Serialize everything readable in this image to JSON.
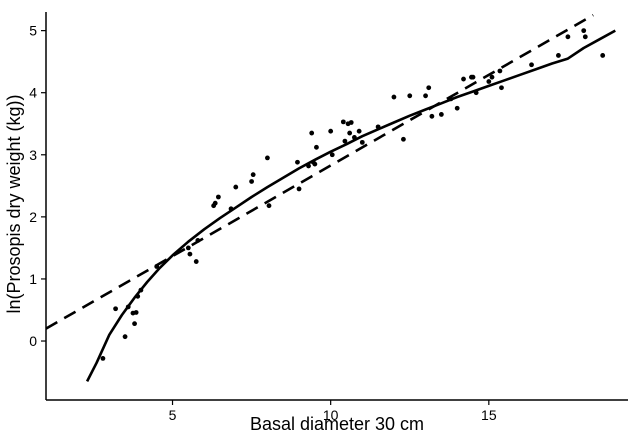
{
  "chart_data": {
    "type": "scatter",
    "xlabel": "Basal diameter 30 cm",
    "ylabel": "ln(Prosopis dry weight (kg))",
    "xlim": [
      1.0,
      19.4
    ],
    "ylim": [
      -0.95,
      5.3
    ],
    "x_ticks": [
      5,
      10,
      15
    ],
    "x_tick_labels": [
      "5",
      "10",
      "15"
    ],
    "y_ticks": [
      0,
      1,
      2,
      3,
      4,
      5
    ],
    "y_tick_labels": [
      "0",
      "1",
      "2",
      "3",
      "4",
      "5"
    ],
    "grid": false,
    "colors": {
      "points": "#000000",
      "lines": "#000000",
      "background": "#ffffff"
    },
    "series": [
      {
        "kind": "points",
        "x": [
          2.8,
          3.2,
          3.5,
          3.6,
          3.75,
          3.8,
          3.85,
          3.9,
          4.0,
          4.5,
          5.5,
          5.55,
          5.75,
          5.8,
          6.3,
          6.35,
          6.45,
          6.85,
          7.0,
          7.5,
          7.55,
          8.0,
          8.05,
          8.95,
          9.0,
          9.3,
          9.4,
          9.45,
          9.5,
          9.55,
          10.0,
          10.05,
          10.4,
          10.45,
          10.55,
          10.6,
          10.65,
          10.75,
          10.9,
          11.0,
          11.5,
          12.0,
          12.3,
          12.5,
          13.0,
          13.1,
          13.2,
          13.5,
          13.8,
          14.0,
          14.2,
          14.45,
          14.5,
          14.6,
          15.0,
          15.1,
          15.35,
          15.4,
          16.35,
          17.2,
          17.5,
          18.0,
          18.05,
          18.6
        ],
        "y": [
          -0.28,
          0.52,
          0.07,
          0.55,
          0.45,
          0.28,
          0.46,
          0.72,
          0.82,
          1.2,
          1.5,
          1.4,
          1.28,
          1.62,
          2.18,
          2.22,
          2.32,
          2.13,
          2.48,
          2.57,
          2.68,
          2.95,
          2.18,
          2.88,
          2.45,
          2.82,
          3.35,
          2.88,
          2.85,
          3.12,
          3.38,
          3.0,
          3.53,
          3.22,
          3.5,
          3.35,
          3.52,
          3.28,
          3.38,
          3.2,
          3.45,
          3.93,
          3.25,
          3.95,
          3.95,
          4.08,
          3.62,
          3.65,
          3.9,
          3.75,
          4.22,
          4.25,
          4.25,
          4.0,
          4.18,
          4.25,
          4.35,
          4.08,
          4.45,
          4.6,
          4.9,
          5.0,
          4.9,
          4.6
        ]
      },
      {
        "kind": "curve-solid",
        "x": [
          2.3,
          2.6,
          3.0,
          3.4,
          3.8,
          4.2,
          4.6,
          5.0,
          5.5,
          6.0,
          6.5,
          7.0,
          7.5,
          8.0,
          8.5,
          9.0,
          9.5,
          10.0,
          10.5,
          11.0,
          11.5,
          12.0,
          12.5,
          13.0,
          13.5,
          14.0,
          14.5,
          15.0,
          15.5,
          16.0,
          16.5,
          17.0,
          17.5,
          18.0,
          18.5,
          19.0
        ],
        "y": [
          -0.65,
          -0.35,
          0.1,
          0.42,
          0.7,
          0.95,
          1.18,
          1.38,
          1.6,
          1.8,
          1.98,
          2.15,
          2.32,
          2.48,
          2.63,
          2.78,
          2.92,
          3.05,
          3.17,
          3.3,
          3.41,
          3.52,
          3.63,
          3.73,
          3.83,
          3.93,
          4.02,
          4.11,
          4.2,
          4.29,
          4.38,
          4.47,
          4.55,
          4.72,
          4.86,
          5.0
        ]
      },
      {
        "kind": "line-dashed",
        "x": [
          1.0,
          18.3
        ],
        "y": [
          0.2,
          5.25
        ]
      }
    ]
  }
}
